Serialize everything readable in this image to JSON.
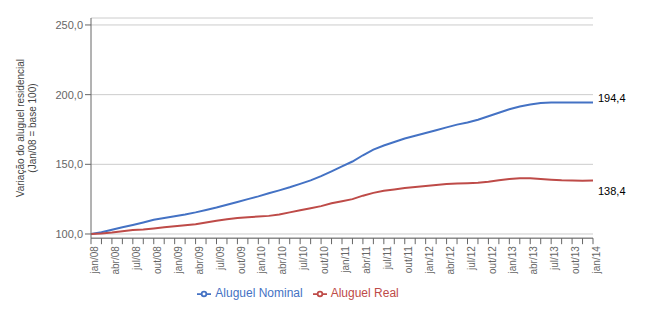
{
  "chart_data": {
    "type": "line",
    "ylabel": "Variação do aluguel residencial\n(Jan/08 = base 100)",
    "categories": [
      "jan/08",
      null,
      "abr/08",
      null,
      "jul/08",
      null,
      "out/08",
      null,
      "jan/09",
      null,
      "abr/09",
      null,
      "jul/09",
      null,
      "out/09",
      null,
      "jan/10",
      null,
      "abr/10",
      null,
      "jul/10",
      null,
      "out/10",
      null,
      "jan/11",
      null,
      "abr/11",
      null,
      "jul/11",
      null,
      "out/11",
      null,
      "jan/12",
      null,
      "abr/12",
      null,
      "jul/12",
      null,
      "out/12",
      null,
      "jan/13",
      null,
      "abr/13",
      null,
      "jul/13",
      null,
      "out/13",
      null,
      "jan/14"
    ],
    "series": [
      {
        "name": "Aluguel Nominal",
        "color": "#4472C4",
        "values": [
          100.0,
          101.2,
          103.0,
          104.8,
          106.5,
          108.3,
          110.2,
          111.5,
          112.8,
          114.0,
          115.5,
          117.2,
          119.0,
          121.0,
          123.0,
          125.0,
          127.0,
          129.2,
          131.3,
          133.5,
          136.0,
          138.5,
          141.5,
          145.0,
          148.5,
          152.0,
          156.5,
          160.5,
          163.5,
          166.0,
          168.5,
          170.5,
          172.5,
          174.5,
          176.5,
          178.5,
          180.0,
          182.0,
          184.5,
          187.0,
          189.5,
          191.5,
          193.0,
          194.0,
          194.4,
          194.4,
          194.4,
          194.4,
          194.4
        ]
      },
      {
        "name": "Aluguel Real",
        "color": "#BE4B48",
        "values": [
          100.0,
          100.3,
          101.0,
          102.0,
          102.8,
          103.3,
          104.0,
          104.8,
          105.5,
          106.2,
          107.0,
          108.2,
          109.5,
          110.5,
          111.5,
          112.0,
          112.5,
          113.0,
          114.0,
          115.5,
          117.0,
          118.5,
          120.0,
          122.0,
          123.5,
          125.0,
          127.5,
          129.5,
          131.0,
          132.0,
          133.0,
          133.8,
          134.5,
          135.2,
          135.8,
          136.3,
          136.5,
          136.8,
          137.5,
          138.5,
          139.5,
          140.0,
          140.0,
          139.5,
          139.0,
          138.5,
          138.3,
          138.2,
          138.4
        ]
      }
    ],
    "annotations": [
      {
        "series": "Aluguel Nominal",
        "text": "194,4"
      },
      {
        "series": "Aluguel Real",
        "text": "138,4"
      }
    ],
    "ylim": [
      97,
      255
    ],
    "yticks": [
      {
        "value": 100.0,
        "label": "100,0"
      },
      {
        "value": 150.0,
        "label": "150,0"
      },
      {
        "value": 200.0,
        "label": "200,0"
      },
      {
        "value": 250.0,
        "label": "250,0"
      }
    ],
    "grid": true,
    "legend": "bottom"
  }
}
